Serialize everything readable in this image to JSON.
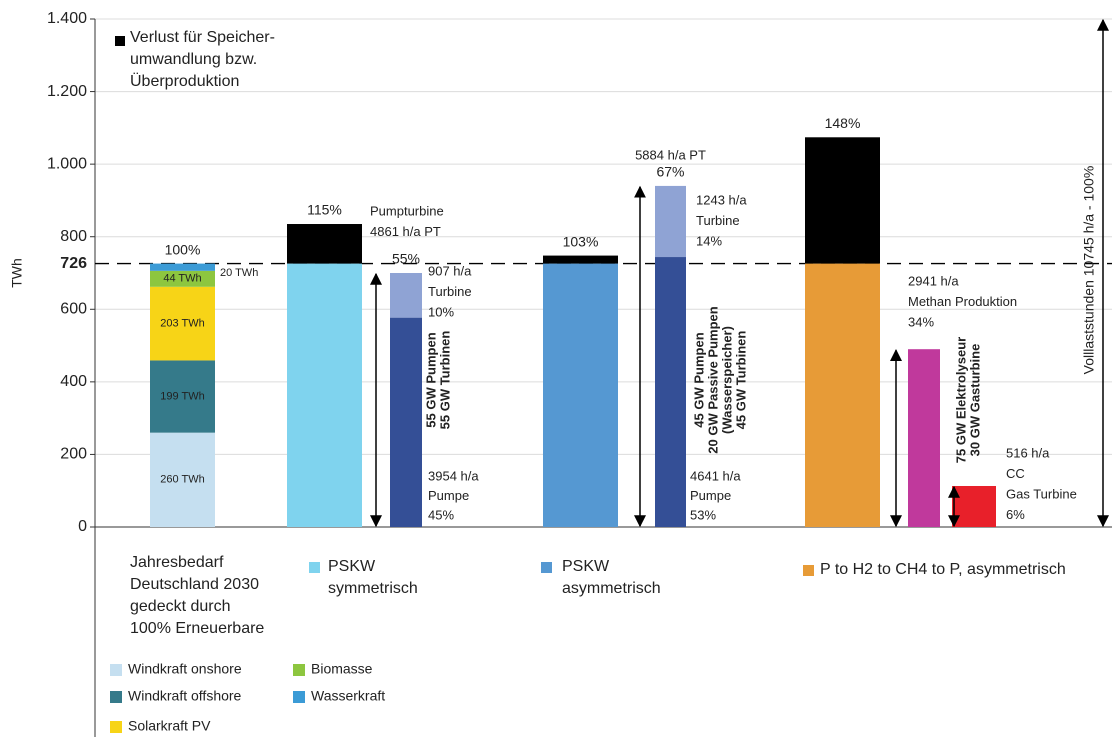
{
  "chart_data": {
    "type": "bar",
    "ylabel": "TWh",
    "ylim": [
      0,
      1400
    ],
    "yticks": [
      0,
      200,
      400,
      600,
      800,
      {
        "value": 1000,
        "label": "1.000"
      },
      {
        "value": 1200,
        "label": "1.200"
      },
      {
        "value": 1400,
        "label": "1.400"
      }
    ],
    "grid": true,
    "ref_line": {
      "value": 726,
      "label": "726"
    },
    "loss_legend": {
      "color": "#000000",
      "lines": [
        "Verlust für Speicher-",
        "umwandlung bzw.",
        "Überproduktion"
      ]
    },
    "full_load": "Volllaststunden 10745 h/a - 100%",
    "groups": [
      {
        "caption": [
          "Jahresbedarf",
          "Deutschland 2030",
          "gedeckt durch",
          "100% Erneuerbare"
        ],
        "bars": [
          {
            "top_label": [
              "100%"
            ],
            "segments": [
              {
                "name": "Windkraft onshore",
                "value": 260,
                "label": "260 TWh",
                "color": "#c5dff0"
              },
              {
                "name": "Windkraft offshore",
                "value": 199,
                "label": "199 TWh",
                "color": "#357a8a"
              },
              {
                "name": "Solarkraft PV",
                "value": 203,
                "label": "203 TWh",
                "color": "#f7d417"
              },
              {
                "name": "Biomasse",
                "value": 44,
                "label": "44 TWh",
                "color": "#8dc63f"
              },
              {
                "name": "Wasserkraft",
                "value": 20,
                "label": "20 TWh",
                "color": "#3b9bd6"
              }
            ]
          }
        ]
      },
      {
        "caption": [
          "PSKW",
          "symmetrisch"
        ],
        "color": "#7fd3ee",
        "bars": [
          {
            "top_label": [
              "115%"
            ],
            "notes": [
              "Pumpturbine",
              "4861 h/a PT"
            ],
            "segments": [
              {
                "value": 726,
                "color": "#7fd3ee"
              },
              {
                "value": 109,
                "color": "#000000"
              }
            ]
          },
          {
            "top_label": [
              "55%"
            ],
            "notes": [
              "907 h/a",
              "Turbine",
              "10%"
            ],
            "notes_bottom": [
              "3954 h/a",
              "Pumpe",
              "45%"
            ],
            "arrow_text": [
              "55 GW Pumpen",
              "55 GW Turbinen"
            ],
            "segments": [
              {
                "value": 577,
                "color": "#344f96"
              },
              {
                "value": 123,
                "color": "#8fa3d4"
              }
            ]
          }
        ]
      },
      {
        "caption": [
          "PSKW",
          "asymmetrisch"
        ],
        "color": "#5598d2",
        "bars": [
          {
            "top_label": [
              "103%"
            ],
            "segments": [
              {
                "value": 726,
                "color": "#5598d2"
              },
              {
                "value": 22,
                "color": "#000000"
              }
            ]
          },
          {
            "top_label": [
              "5884 h/a PT",
              "67%"
            ],
            "notes": [
              "1243 h/a",
              "Turbine",
              "14%"
            ],
            "notes_bottom": [
              "4641 h/a",
              "Pumpe",
              "53%"
            ],
            "arrow_text": [
              "45 GW Pumpen",
              "20 GW Passive Pumpen",
              "(Wasserspeicher)",
              "45 GW Turbinen"
            ],
            "segments": [
              {
                "value": 744,
                "color": "#344f96"
              },
              {
                "value": 196,
                "color": "#8fa3d4"
              }
            ]
          }
        ]
      },
      {
        "caption": [
          "P to H2 to CH4 to P, asymmetrisch"
        ],
        "color": "#e79b37",
        "bars": [
          {
            "top_label": [
              "148%"
            ],
            "segments": [
              {
                "value": 726,
                "color": "#e79b37"
              },
              {
                "value": 348,
                "color": "#000000"
              }
            ]
          },
          {
            "notes": [
              "2941 h/a",
              "Methan Produktion",
              "34%"
            ],
            "arrow_text": [
              "75 GW Elektrolyseur",
              "30 GW Gasturbine"
            ],
            "segments": [
              {
                "value": 490,
                "color": "#c0399c"
              }
            ]
          },
          {
            "notes": [
              "516 h/a",
              "CC",
              "Gas Turbine",
              "6%"
            ],
            "arrow_only": true,
            "segments": [
              {
                "value": 113,
                "color": "#e8202a"
              }
            ]
          }
        ]
      }
    ]
  }
}
